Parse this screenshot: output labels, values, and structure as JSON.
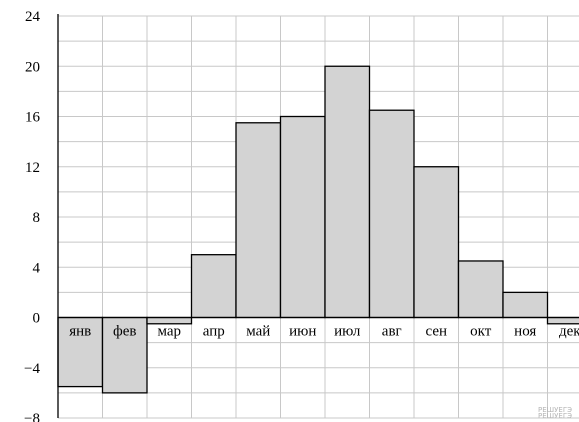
{
  "chart_data": {
    "type": "bar",
    "categories": [
      "янв",
      "фев",
      "мар",
      "апр",
      "май",
      "июн",
      "июл",
      "авг",
      "сен",
      "окт",
      "ноя",
      "дек"
    ],
    "values": [
      -5.5,
      -6,
      -0.5,
      5,
      15.5,
      16,
      20,
      16.5,
      12,
      4.5,
      2,
      -0.5
    ],
    "yticks": [
      "24",
      "20",
      "16",
      "12",
      "8",
      "4",
      "0",
      "−4",
      "−8"
    ],
    "ylim": [
      -8,
      24
    ],
    "grid": true,
    "bar_color": "#d3d3d3",
    "bar_edge_color": "#000000",
    "grid_color": "#c8c8c8"
  },
  "watermark": [
    "РЕШУЕГЭ",
    "РЕШУЕГЭ"
  ]
}
